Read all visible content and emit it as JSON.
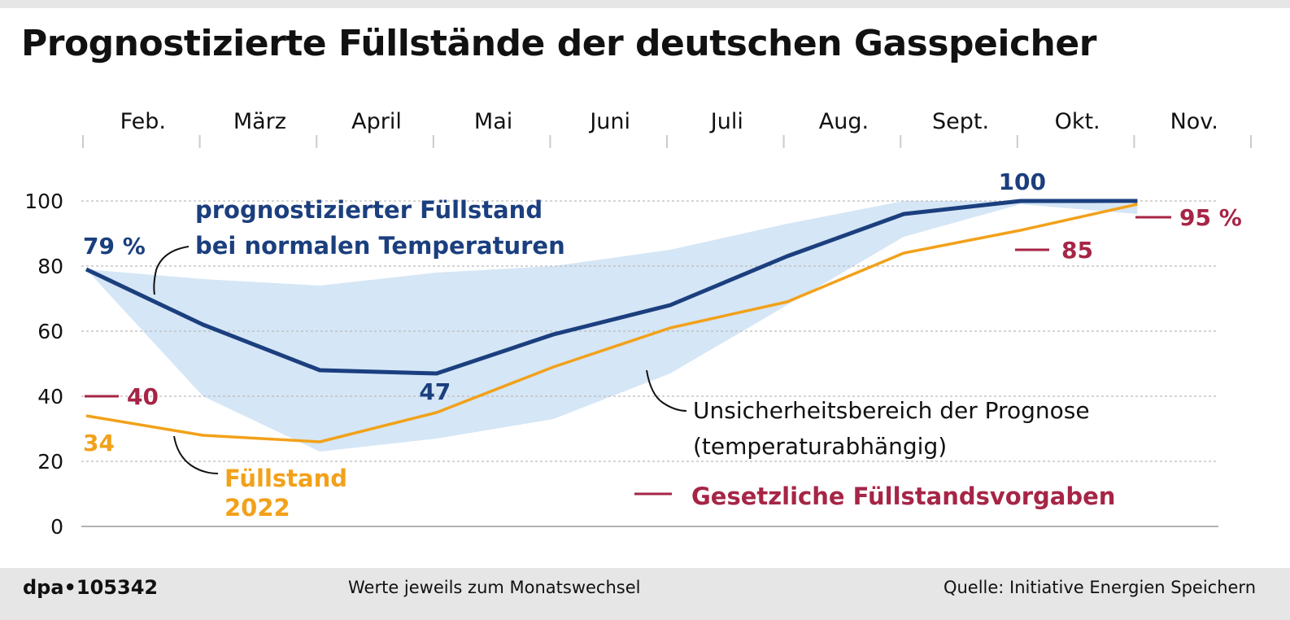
{
  "title": "Prognostizierte Füllstände der deutschen Gasspeicher",
  "footer": {
    "logo": "dpa•105342",
    "note": "Werte jeweils zum Monatswechsel",
    "source": "Quelle: Initiative Energien Speichern"
  },
  "colors": {
    "forecast": "#1b3f7e",
    "fill2022": "#f2a11a",
    "legal": "#a62546",
    "band": "#d5e6f6",
    "grid": "#bbbbbb",
    "text": "#111111"
  },
  "chart_data": {
    "type": "line",
    "title": "Prognostizierte Füllstände der deutschen Gasspeicher",
    "xlabel": "",
    "ylabel": "",
    "ylim": [
      0,
      100
    ],
    "yticks": [
      0,
      20,
      40,
      60,
      80,
      100
    ],
    "grid": true,
    "months": [
      "Feb.",
      "März",
      "April",
      "Mai",
      "Juni",
      "Juli",
      "Aug.",
      "Sept.",
      "Okt.",
      "Nov."
    ],
    "x_points": [
      "Feb 1",
      "Mar 1",
      "Apr 1",
      "May 1",
      "Jun 1",
      "Jul 1",
      "Aug 1",
      "Sep 1",
      "Oct 1",
      "Nov 1"
    ],
    "series": [
      {
        "name": "prognostizierter Füllstand bei normalen Temperaturen",
        "values": [
          79,
          62,
          48,
          47,
          59,
          68,
          83,
          96,
          100,
          100
        ]
      },
      {
        "name": "Füllstand 2022",
        "values": [
          34,
          28,
          26,
          35,
          49,
          61,
          69,
          84,
          91,
          99
        ]
      }
    ],
    "band": {
      "name": "Unsicherheitsbereich der Prognose (temperaturabhängig)",
      "upper": [
        79,
        76,
        74,
        78,
        80,
        85,
        93,
        100,
        100,
        99
      ],
      "lower": [
        79,
        40,
        23,
        27,
        33,
        47,
        68,
        89,
        99,
        96
      ]
    },
    "legal_targets": {
      "name": "Gesetzliche Füllstandsvorgaben",
      "points": [
        {
          "x": "Feb 1",
          "value": 40,
          "label": "40"
        },
        {
          "x": "Oct 1",
          "value": 85,
          "label": "85"
        },
        {
          "x": "Nov 1",
          "value": 95,
          "label": "95 %"
        }
      ]
    },
    "data_labels": [
      {
        "series": "forecast",
        "x": "Feb 1",
        "text": "79 %"
      },
      {
        "series": "forecast",
        "x": "May 1",
        "text": "47"
      },
      {
        "series": "forecast",
        "x": "Oct 1",
        "text": "100"
      },
      {
        "series": "2022",
        "x": "Feb 1",
        "text": "34"
      }
    ],
    "annotations": {
      "forecast_line1": "prognostizierter Füllstand",
      "forecast_line2": "bei normalen Temperaturen",
      "band_line1": "Unsicherheitsbereich der Prognose",
      "band_line2": "(temperaturabhängig)",
      "fill2022_line1": "Füllstand",
      "fill2022_line2": "2022",
      "legal": "Gesetzliche Füllstandsvorgaben"
    }
  }
}
